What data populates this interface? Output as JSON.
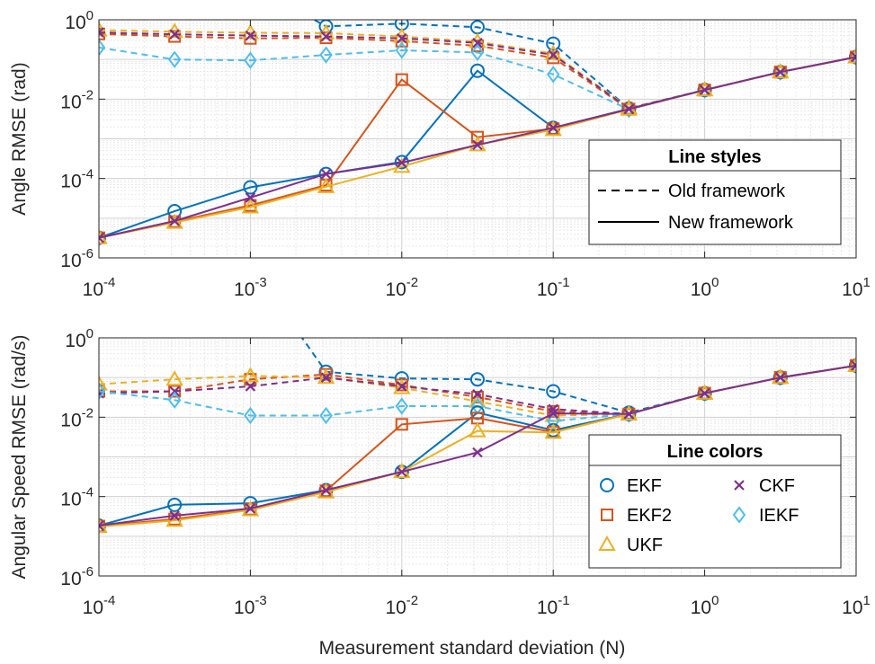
{
  "chart_data": [
    {
      "type": "line",
      "xscale": "log",
      "yscale": "log",
      "xlim": [
        0.0001,
        10
      ],
      "ylim": [
        1e-06,
        1
      ],
      "xlabel": "",
      "ylabel": "Angle RMSE (rad)",
      "x_ticks": [
        {
          "base": "10",
          "exp": "-4"
        },
        {
          "base": "10",
          "exp": "-3"
        },
        {
          "base": "10",
          "exp": "-2"
        },
        {
          "base": "10",
          "exp": "-1"
        },
        {
          "base": "10",
          "exp": "0"
        },
        {
          "base": "10",
          "exp": "1"
        }
      ],
      "y_ticks": [
        {
          "base": "10",
          "exp": "-6"
        },
        {
          "base": "10",
          "exp": "-4"
        },
        {
          "base": "10",
          "exp": "-2"
        },
        {
          "base": "10",
          "exp": "0"
        }
      ],
      "grid": true,
      "legend": {
        "title": "Line styles",
        "position": "lower-right",
        "entries": [
          {
            "label": "Old framework",
            "style": "dashed"
          },
          {
            "label": "New framework",
            "style": "solid"
          }
        ]
      },
      "x": [
        0.0001,
        0.000316,
        0.001,
        0.00316,
        0.01,
        0.0316,
        0.1,
        0.316,
        1,
        3.16,
        10
      ],
      "series": [
        {
          "filter": "EKF",
          "framework": "old",
          "marker": "circle",
          "color": "#0072BD",
          "values": [
            null,
            null,
            null,
            0.68,
            0.8,
            0.65,
            0.25,
            0.0058,
            0.017,
            0.048,
            0.115
          ]
        },
        {
          "filter": "EKF2",
          "framework": "old",
          "marker": "square",
          "color": "#D95319",
          "values": [
            0.44,
            0.38,
            0.34,
            0.35,
            0.29,
            0.22,
            0.11,
            0.0056,
            0.017,
            0.048,
            0.115
          ]
        },
        {
          "filter": "UKF",
          "framework": "old",
          "marker": "triangle",
          "color": "#EDB120",
          "values": [
            0.55,
            0.5,
            0.47,
            0.46,
            0.38,
            0.28,
            0.14,
            0.006,
            0.017,
            0.048,
            0.115
          ]
        },
        {
          "filter": "CKF",
          "framework": "old",
          "marker": "x",
          "color": "#7E2F8E",
          "values": [
            0.48,
            0.43,
            0.4,
            0.38,
            0.34,
            0.26,
            0.13,
            0.0058,
            0.017,
            0.048,
            0.115
          ]
        },
        {
          "filter": "IEKF",
          "framework": "old",
          "marker": "diamond",
          "color": "#4DBEEE",
          "values": [
            0.2,
            0.1,
            0.095,
            0.13,
            0.17,
            0.15,
            0.042,
            0.0055,
            0.017,
            0.048,
            0.115
          ]
        },
        {
          "filter": "EKF",
          "framework": "new",
          "marker": "circle",
          "color": "#0072BD",
          "values": [
            3.2e-06,
            1.5e-05,
            6e-05,
            0.00013,
            0.00026,
            0.052,
            0.0019,
            0.0057,
            0.017,
            0.048,
            0.115
          ]
        },
        {
          "filter": "EKF2",
          "framework": "new",
          "marker": "square",
          "color": "#D95319",
          "values": [
            3.2e-06,
            8.2e-06,
            2.1e-05,
            6.8e-05,
            0.031,
            0.0011,
            0.0018,
            0.0056,
            0.017,
            0.048,
            0.115
          ]
        },
        {
          "filter": "UKF",
          "framework": "new",
          "marker": "triangle",
          "color": "#EDB120",
          "values": [
            3.2e-06,
            7.8e-06,
            1.9e-05,
            6.2e-05,
            0.0002,
            0.0007,
            0.0017,
            0.0055,
            0.017,
            0.048,
            0.115
          ]
        },
        {
          "filter": "CKF",
          "framework": "new",
          "marker": "x",
          "color": "#7E2F8E",
          "values": [
            3.2e-06,
            8.5e-06,
            3.3e-05,
            0.00013,
            0.00025,
            0.0007,
            0.0019,
            0.0056,
            0.017,
            0.048,
            0.115
          ]
        }
      ]
    },
    {
      "type": "line",
      "xscale": "log",
      "yscale": "log",
      "xlim": [
        0.0001,
        10
      ],
      "ylim": [
        1e-06,
        1
      ],
      "xlabel": "Measurement standard deviation (N)",
      "ylabel": "Angular Speed RMSE (rad/s)",
      "x_ticks": [
        {
          "base": "10",
          "exp": "-4"
        },
        {
          "base": "10",
          "exp": "-3"
        },
        {
          "base": "10",
          "exp": "-2"
        },
        {
          "base": "10",
          "exp": "-1"
        },
        {
          "base": "10",
          "exp": "0"
        },
        {
          "base": "10",
          "exp": "1"
        }
      ],
      "y_ticks": [
        {
          "base": "10",
          "exp": "-6"
        },
        {
          "base": "10",
          "exp": "-4"
        },
        {
          "base": "10",
          "exp": "-2"
        },
        {
          "base": "10",
          "exp": "0"
        }
      ],
      "grid": true,
      "legend": {
        "title": "Line colors",
        "position": "lower-right",
        "entries": [
          {
            "label": "EKF",
            "marker": "circle",
            "color": "#0072BD"
          },
          {
            "label": "CKF",
            "marker": "x",
            "color": "#7E2F8E"
          },
          {
            "label": "EKF2",
            "marker": "square",
            "color": "#D95319"
          },
          {
            "label": "IEKF",
            "marker": "diamond",
            "color": "#4DBEEE"
          },
          {
            "label": "UKF",
            "marker": "triangle",
            "color": "#EDB120"
          }
        ]
      },
      "x": [
        0.0001,
        0.000316,
        0.001,
        0.00316,
        0.01,
        0.0316,
        0.1,
        0.316,
        1,
        3.16,
        10
      ],
      "series": [
        {
          "filter": "EKF",
          "framework": "old",
          "marker": "circle",
          "color": "#0072BD",
          "values": [
            null,
            null,
            null,
            0.14,
            0.095,
            0.09,
            0.045,
            0.013,
            0.04,
            0.1,
            0.2
          ]
        },
        {
          "filter": "EKF2",
          "framework": "old",
          "marker": "square",
          "color": "#D95319",
          "values": [
            0.045,
            0.045,
            0.09,
            0.12,
            0.065,
            0.032,
            0.014,
            0.012,
            0.04,
            0.1,
            0.2
          ]
        },
        {
          "filter": "UKF",
          "framework": "old",
          "marker": "triangle",
          "color": "#EDB120",
          "values": [
            0.068,
            0.09,
            0.11,
            0.1,
            0.055,
            0.025,
            0.011,
            0.012,
            0.04,
            0.1,
            0.2
          ]
        },
        {
          "filter": "CKF",
          "framework": "old",
          "marker": "x",
          "color": "#7E2F8E",
          "values": [
            0.04,
            0.045,
            0.06,
            0.1,
            0.06,
            0.038,
            0.016,
            0.012,
            0.04,
            0.1,
            0.2
          ]
        },
        {
          "filter": "IEKF",
          "framework": "old",
          "marker": "diamond",
          "color": "#4DBEEE",
          "values": [
            0.045,
            0.027,
            0.011,
            0.011,
            0.019,
            0.019,
            0.008,
            0.012,
            0.04,
            0.1,
            0.2
          ]
        },
        {
          "filter": "EKF",
          "framework": "new",
          "marker": "circle",
          "color": "#0072BD",
          "values": [
            1.85e-05,
            6.2e-05,
            6.8e-05,
            0.000145,
            0.00042,
            0.013,
            0.0047,
            0.012,
            0.04,
            0.1,
            0.2
          ]
        },
        {
          "filter": "EKF2",
          "framework": "new",
          "marker": "square",
          "color": "#D95319",
          "values": [
            1.8e-05,
            2.7e-05,
            4.8e-05,
            0.00014,
            0.0066,
            0.0095,
            0.0042,
            0.012,
            0.04,
            0.1,
            0.2
          ]
        },
        {
          "filter": "UKF",
          "framework": "new",
          "marker": "triangle",
          "color": "#EDB120",
          "values": [
            1.75e-05,
            2.5e-05,
            4.6e-05,
            0.00013,
            0.00042,
            0.0045,
            0.0041,
            0.012,
            0.04,
            0.1,
            0.2
          ]
        },
        {
          "filter": "CKF",
          "framework": "new",
          "marker": "x",
          "color": "#7E2F8E",
          "values": [
            1.85e-05,
            3.3e-05,
            5e-05,
            0.000145,
            0.00042,
            0.0013,
            0.0125,
            0.012,
            0.04,
            0.1,
            0.2
          ]
        }
      ]
    }
  ]
}
